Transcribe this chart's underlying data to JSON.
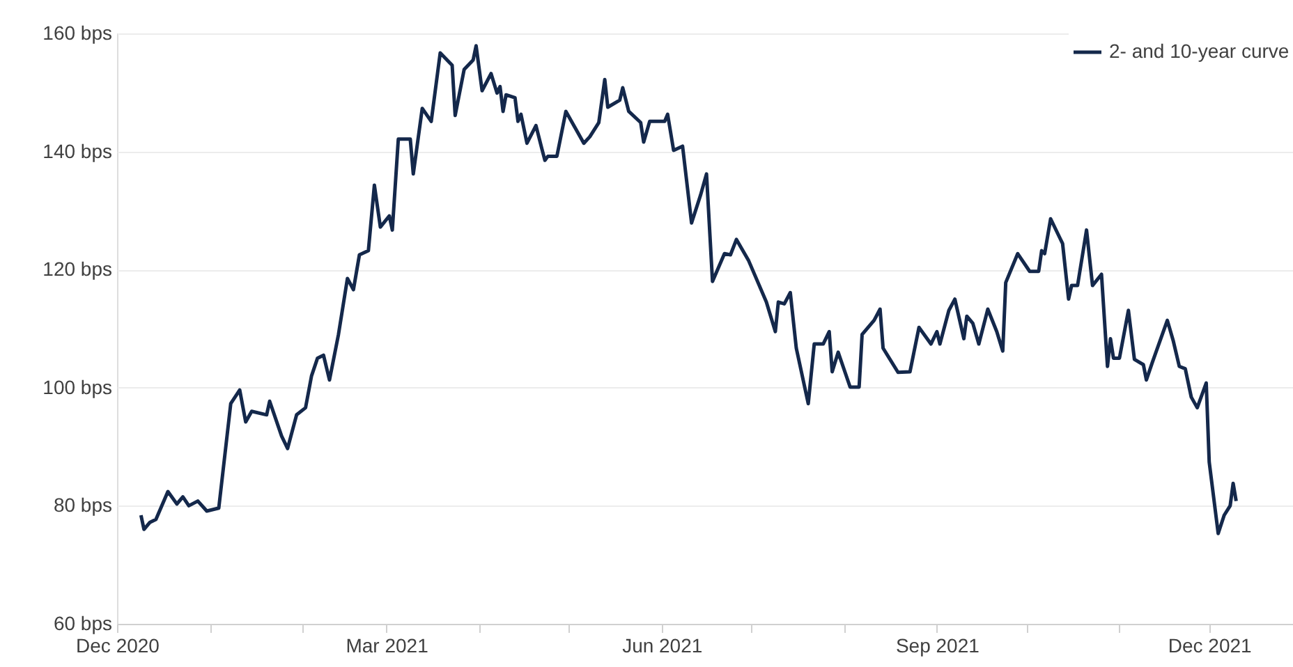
{
  "chart_data": {
    "type": "line",
    "x": [
      "2020-12-09",
      "2020-12-10",
      "2020-12-12",
      "2020-12-14",
      "2020-12-18",
      "2020-12-21",
      "2020-12-23",
      "2020-12-25",
      "2020-12-28",
      "2020-12-31",
      "2021-01-04",
      "2021-01-08",
      "2021-01-11",
      "2021-01-13",
      "2021-01-15",
      "2021-01-20",
      "2021-01-21",
      "2021-01-25",
      "2021-01-27",
      "2021-01-30",
      "2021-02-02",
      "2021-02-04",
      "2021-02-06",
      "2021-02-08",
      "2021-02-10",
      "2021-02-13",
      "2021-02-16",
      "2021-02-18",
      "2021-02-20",
      "2021-02-23",
      "2021-02-25",
      "2021-02-27",
      "2021-03-02",
      "2021-03-03",
      "2021-03-05",
      "2021-03-09",
      "2021-03-10",
      "2021-03-13",
      "2021-03-16",
      "2021-03-19",
      "2021-03-23",
      "2021-03-24",
      "2021-03-27",
      "2021-03-30",
      "2021-03-31",
      "2021-04-02",
      "2021-04-05",
      "2021-04-07",
      "2021-04-08",
      "2021-04-09",
      "2021-04-10",
      "2021-04-13",
      "2021-04-14",
      "2021-04-15",
      "2021-04-17",
      "2021-04-20",
      "2021-04-22",
      "2021-04-23",
      "2021-04-24",
      "2021-04-27",
      "2021-04-30",
      "2021-05-06",
      "2021-05-08",
      "2021-05-11",
      "2021-05-13",
      "2021-05-14",
      "2021-05-18",
      "2021-05-19",
      "2021-05-21",
      "2021-05-25",
      "2021-05-26",
      "2021-05-28",
      "2021-06-02",
      "2021-06-03",
      "2021-06-05",
      "2021-06-08",
      "2021-06-11",
      "2021-06-14",
      "2021-06-16",
      "2021-06-18",
      "2021-06-22",
      "2021-06-24",
      "2021-06-26",
      "2021-06-30",
      "2021-07-06",
      "2021-07-09",
      "2021-07-10",
      "2021-07-12",
      "2021-07-14",
      "2021-07-16",
      "2021-07-20",
      "2021-07-22",
      "2021-07-25",
      "2021-07-27",
      "2021-07-28",
      "2021-07-30",
      "2021-08-03",
      "2021-08-06",
      "2021-08-07",
      "2021-08-11",
      "2021-08-13",
      "2021-08-14",
      "2021-08-19",
      "2021-08-23",
      "2021-08-26",
      "2021-08-30",
      "2021-09-01",
      "2021-09-02",
      "2021-09-05",
      "2021-09-07",
      "2021-09-10",
      "2021-09-11",
      "2021-09-13",
      "2021-09-15",
      "2021-09-18",
      "2021-09-21",
      "2021-09-23",
      "2021-09-24",
      "2021-09-28",
      "2021-10-02",
      "2021-10-05",
      "2021-10-06",
      "2021-10-07",
      "2021-10-09",
      "2021-10-13",
      "2021-10-15",
      "2021-10-16",
      "2021-10-18",
      "2021-10-21",
      "2021-10-23",
      "2021-10-26",
      "2021-10-28",
      "2021-10-29",
      "2021-10-30",
      "2021-11-01",
      "2021-11-04",
      "2021-11-06",
      "2021-11-09",
      "2021-11-10",
      "2021-11-12",
      "2021-11-17",
      "2021-11-19",
      "2021-11-21",
      "2021-11-23",
      "2021-11-25",
      "2021-11-27",
      "2021-11-30",
      "2021-12-01",
      "2021-12-04",
      "2021-12-06",
      "2021-12-08",
      "2021-12-09",
      "2021-12-10"
    ],
    "series": [
      {
        "name": "2- and 10-year curve",
        "color": "#14284b",
        "values": [
          78.4,
          76,
          77.2,
          77.7,
          82.4,
          80.3,
          81.5,
          80,
          80.8,
          79.1,
          79.6,
          97.3,
          99.6,
          94.2,
          96,
          95.4,
          97.7,
          91.8,
          89.7,
          95.4,
          96.6,
          102,
          105,
          105.5,
          101.3,
          109,
          118.5,
          116.6,
          122.5,
          123.2,
          134.3,
          127.2,
          129.1,
          126.7,
          142.1,
          142.1,
          136.2,
          147.3,
          145.1,
          156.7,
          154.6,
          146.1,
          153.9,
          155.5,
          157.9,
          150.3,
          153.2,
          149.9,
          151,
          146.8,
          149.6,
          149.1,
          145.1,
          146.3,
          141.4,
          144.4,
          140.4,
          138.5,
          139.2,
          139.2,
          146.8,
          141.4,
          142.5,
          144.9,
          152.2,
          147.5,
          148.7,
          150.8,
          146.8,
          144.9,
          141.6,
          145.1,
          145.1,
          146.3,
          140.2,
          140.9,
          127.9,
          132.6,
          136.2,
          118,
          122.7,
          122.5,
          125.1,
          121.6,
          114.5,
          109.5,
          114.5,
          114.2,
          116.1,
          106.7,
          97.3,
          107.4,
          107.4,
          109.5,
          102.7,
          106,
          100.1,
          100.1,
          109,
          111.4,
          113.3,
          106.7,
          102.6,
          102.7,
          110.2,
          107.4,
          109.5,
          107.4,
          113.1,
          115,
          108.3,
          112.1,
          110.9,
          107.4,
          113.3,
          109.5,
          106.2,
          117.8,
          122.7,
          119.7,
          119.7,
          123.2,
          122.7,
          128.6,
          124.4,
          115,
          117.3,
          117.3,
          126.7,
          117.3,
          119.2,
          103.6,
          108.3,
          105,
          105,
          113.1,
          104.8,
          103.9,
          101.3,
          104.3,
          111.4,
          107.9,
          103.6,
          103.2,
          98.4,
          96.6,
          100.8,
          87.4,
          75.3,
          78.4,
          80,
          83.8,
          80.8
        ]
      }
    ],
    "xlim": [
      "2020-12-01",
      "2021-12-29"
    ],
    "xticks": [
      {
        "value": "2020-12-01",
        "label": "Dec 2020"
      },
      {
        "value": "2021-01-01",
        "label": null
      },
      {
        "value": "2021-02-01",
        "label": null
      },
      {
        "value": "2021-03-01",
        "label": "Mar 2021"
      },
      {
        "value": "2021-04-01",
        "label": null
      },
      {
        "value": "2021-05-01",
        "label": null
      },
      {
        "value": "2021-06-01",
        "label": "Jun 2021"
      },
      {
        "value": "2021-07-01",
        "label": null
      },
      {
        "value": "2021-08-01",
        "label": null
      },
      {
        "value": "2021-09-01",
        "label": "Sep 2021"
      },
      {
        "value": "2021-10-01",
        "label": null
      },
      {
        "value": "2021-11-01",
        "label": null
      },
      {
        "value": "2021-12-01",
        "label": "Dec 2021"
      }
    ],
    "ylim": [
      60,
      160
    ],
    "yticks": [
      {
        "value": 60,
        "label": "60 bps"
      },
      {
        "value": 80,
        "label": "80 bps"
      },
      {
        "value": 100,
        "label": "100 bps"
      },
      {
        "value": 120,
        "label": "120 bps"
      },
      {
        "value": 140,
        "label": "140 bps"
      },
      {
        "value": 160,
        "label": "160 bps"
      }
    ],
    "grid": "y",
    "legend": "top right",
    "marker": "none",
    "line_style": "solid"
  }
}
